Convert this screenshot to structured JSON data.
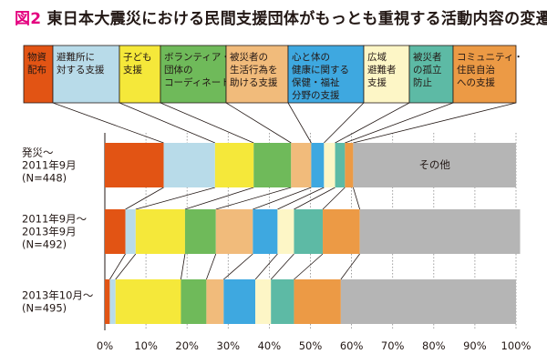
{
  "figure_label": "図2",
  "title": "東日本大震災における民間支援団体がもっとも重視する活動内容の変遷",
  "chart_data": {
    "type": "bar",
    "orientation": "horizontal",
    "stacked": true,
    "title": "東日本大震災における民間支援団体がもっとも重視する活動内容の変遷",
    "xlabel": "",
    "ylabel": "",
    "xlim": [
      0,
      100
    ],
    "x_ticks": [
      "0%",
      "10%",
      "20%",
      "30%",
      "40%",
      "50%",
      "60%",
      "70%",
      "80%",
      "90%",
      "100%"
    ],
    "grid": true,
    "legend_position": "top",
    "categories": [
      {
        "lines": [
          "発災～",
          "2011年9月",
          "(N=448)"
        ]
      },
      {
        "lines": [
          "2011年9月～",
          "2013年9月",
          "(N=492)"
        ]
      },
      {
        "lines": [
          "2013年10月～",
          "(N=495)"
        ]
      }
    ],
    "series": [
      {
        "name": "物資配布",
        "lines": [
          "物資",
          "配布"
        ],
        "color": "#e25414",
        "values": [
          14.3,
          5.0,
          1.2
        ]
      },
      {
        "name": "避難所に対する支援",
        "lines": [
          "避難所に",
          "対する支援"
        ],
        "color": "#b8dbe9",
        "values": [
          12.5,
          2.5,
          1.4
        ]
      },
      {
        "name": "子ども支援",
        "lines": [
          "子ども",
          "支援"
        ],
        "color": "#f5e83a",
        "values": [
          9.4,
          12.0,
          15.9
        ]
      },
      {
        "name": "ボランティア・団体のコーディネート",
        "lines": [
          "ボランティア・",
          "団体の",
          "コーディネート"
        ],
        "color": "#6fba5a",
        "values": [
          9.1,
          7.5,
          6.2
        ]
      },
      {
        "name": "被災者の生活行為を助ける支援",
        "lines": [
          "被災者の",
          "生活行為を",
          "助ける支援"
        ],
        "color": "#f1bb7b",
        "values": [
          4.9,
          9.0,
          4.2
        ]
      },
      {
        "name": "心と体の健康に関する保健・福祉分野の支援",
        "lines": [
          "心と体の",
          "健康に関する",
          "保健・福祉",
          "分野の支援"
        ],
        "color": "#3ea8e0",
        "values": [
          3.1,
          6.0,
          7.7
        ]
      },
      {
        "name": "広域避難者支援",
        "lines": [
          "広域",
          "避難者",
          "支援"
        ],
        "color": "#fdf6c6",
        "values": [
          2.7,
          4.0,
          3.8
        ]
      },
      {
        "name": "被災者の孤立防止",
        "lines": [
          "被災者",
          "の孤立",
          "防止"
        ],
        "color": "#5dbaa5",
        "values": [
          2.4,
          7.0,
          5.6
        ]
      },
      {
        "name": "コミュニティ・住民自治への支援",
        "lines": [
          "コミュニティ・",
          "住民自治",
          "への支援"
        ],
        "color": "#ec9a45",
        "values": [
          2.0,
          9.0,
          11.4
        ]
      },
      {
        "name": "その他",
        "lines": [
          "その他"
        ],
        "color": "#b5b5b5",
        "values": [
          39.6,
          39.0,
          42.6
        ]
      }
    ],
    "annotations": [
      "その他"
    ]
  }
}
